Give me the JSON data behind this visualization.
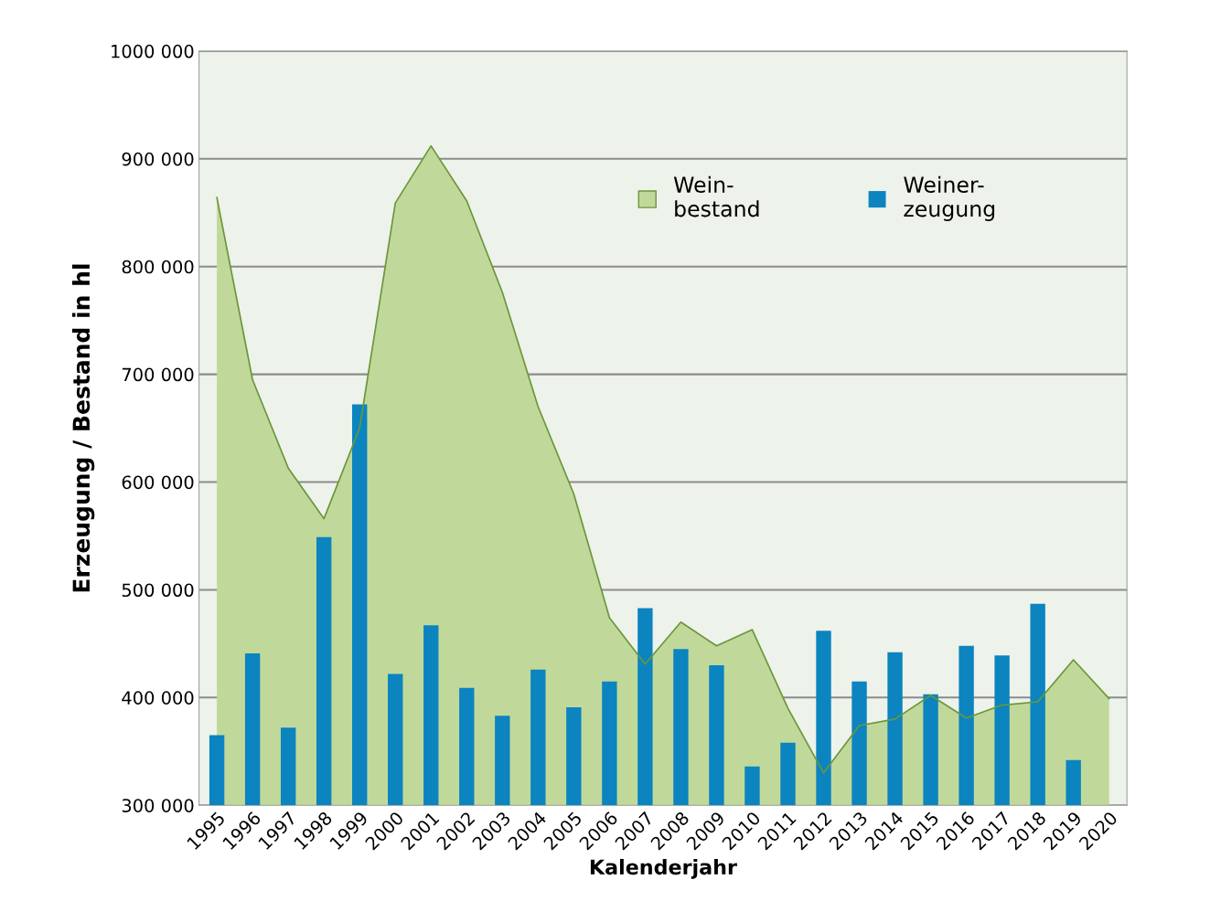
{
  "chart_data": {
    "type": "bar",
    "xlabel": "Kalenderjahr",
    "ylabel": "Erzeugung / Bestand in hl",
    "categories": [
      "1995",
      "1996",
      "1997",
      "1998",
      "1999",
      "2000",
      "2001",
      "2002",
      "2003",
      "2004",
      "2005",
      "2006",
      "2007",
      "2008",
      "2009",
      "2010",
      "2011",
      "2012",
      "2013",
      "2014",
      "2015",
      "2016",
      "2017",
      "2018",
      "2019",
      "2020"
    ],
    "series": [
      {
        "name": "Wein-\nbestand",
        "type": "area",
        "color": "#c0d99a",
        "values": [
          864000,
          695000,
          613000,
          566000,
          650000,
          859000,
          912000,
          861000,
          776000,
          670000,
          589000,
          474000,
          431000,
          470000,
          448000,
          463000,
          390000,
          330000,
          374000,
          380000,
          402000,
          381000,
          393000,
          396000,
          435000,
          399000
        ]
      },
      {
        "name": "Weiner-\nzeugung",
        "color": "#0b84c0",
        "values": [
          365000,
          441000,
          372000,
          549000,
          672000,
          422000,
          467000,
          409000,
          383000,
          426000,
          391000,
          415000,
          483000,
          445000,
          430000,
          336000,
          358000,
          462000,
          415000,
          442000,
          403000,
          448000,
          439000,
          487000,
          342000,
          null
        ]
      }
    ],
    "ylim": [
      300000,
      1000000
    ],
    "yticks": [
      {
        "value": 300000,
        "label": "300 000"
      },
      {
        "value": 400000,
        "label": "400 000"
      },
      {
        "value": 500000,
        "label": "500 000"
      },
      {
        "value": 600000,
        "label": "600 000"
      },
      {
        "value": 700000,
        "label": "700 000"
      },
      {
        "value": 800000,
        "label": "800 000"
      },
      {
        "value": 900000,
        "label": "900 000"
      },
      {
        "value": 1000000,
        "label": "1000 000"
      }
    ],
    "grid": "y",
    "legend": "top right"
  }
}
